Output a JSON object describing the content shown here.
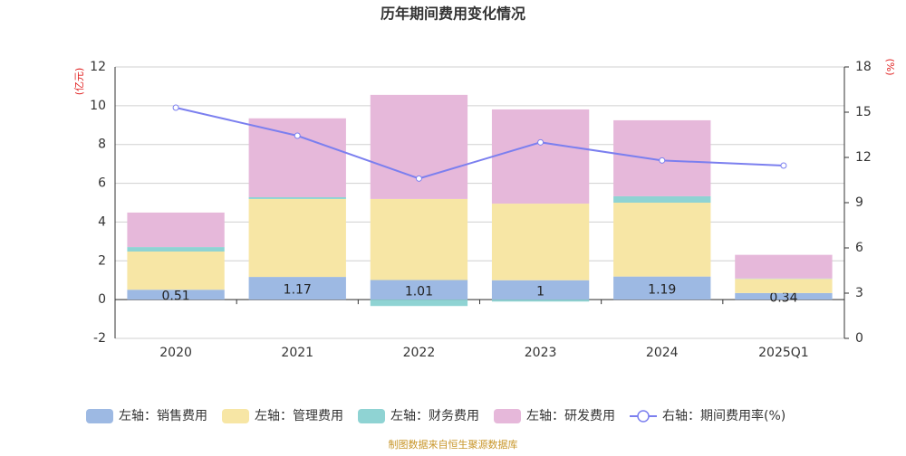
{
  "chart_data": {
    "type": "bar",
    "title": "历年期间费用变化情况",
    "y_label": "(亿元)",
    "y2_label": "(%)",
    "categories": [
      "2020",
      "2021",
      "2022",
      "2023",
      "2024",
      "2025Q1"
    ],
    "series": [
      {
        "name": "左轴：销售费用",
        "color": "#9db9e3",
        "values": [
          0.51,
          1.17,
          1.01,
          1,
          1.19,
          0.34
        ]
      },
      {
        "name": "左轴：管理费用",
        "color": "#f7e6a5",
        "values": [
          1.97,
          4.02,
          4.18,
          3.95,
          3.81,
          0.73
        ]
      },
      {
        "name": "左轴：财务费用",
        "color": "#8fd3d3",
        "values": [
          0.23,
          0.09,
          -0.33,
          -0.1,
          0.33,
          0.02
        ]
      },
      {
        "name": "左轴：研发费用",
        "color": "#e6b8da",
        "values": [
          1.78,
          4.07,
          5.37,
          4.86,
          3.92,
          1.22
        ]
      },
      {
        "name": "右轴：期间费用率(%)",
        "color": "#7b7fef",
        "type": "line",
        "axis": "y2",
        "values": [
          15.3,
          13.44,
          10.6,
          13.0,
          11.8,
          11.46
        ]
      }
    ],
    "label_series": 0,
    "stacked": true,
    "ylim": [
      -2,
      12
    ],
    "yticks": [
      -2,
      0,
      2,
      4,
      6,
      8,
      10,
      12
    ],
    "y2lim": [
      0,
      18
    ],
    "y2ticks": [
      0,
      3,
      6,
      9,
      12,
      15,
      18
    ],
    "grid": true,
    "legend": "bottom",
    "source": "制图数据来自恒生聚源数据库"
  }
}
